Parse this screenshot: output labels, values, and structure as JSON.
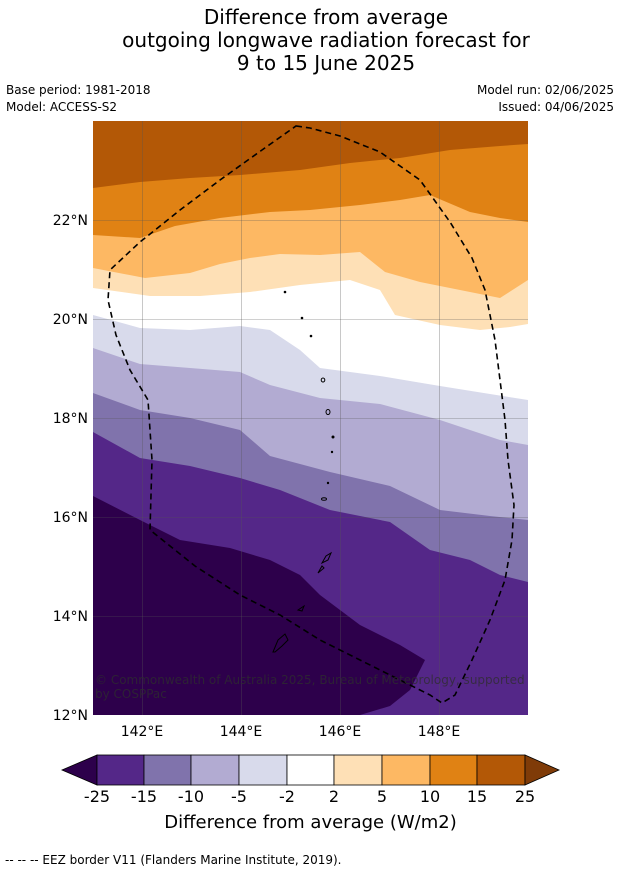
{
  "title": {
    "line1": "Difference from average",
    "line2": "outgoing longwave radiation forecast for",
    "line3": "9 to 15 June 2025"
  },
  "meta": {
    "base_period": "Base period: 1981-2018",
    "model": "Model: ACCESS-S2",
    "model_run": "Model run: 02/06/2025",
    "issued": "Issued: 04/06/2025"
  },
  "map": {
    "lat_labels": [
      "22°N",
      "20°N",
      "18°N",
      "16°N",
      "14°N",
      "12°N"
    ],
    "lon_labels": [
      "142°E",
      "144°E",
      "146°E",
      "148°E"
    ],
    "lat_range": [
      12,
      24
    ],
    "lon_range": [
      141,
      149.8
    ],
    "copyright": "© Commonwealth of Australia 2025, Bureau of Meteorology, supported by COSPPac"
  },
  "colorbar": {
    "ticks": [
      "-25",
      "-15",
      "-10",
      "-5",
      "-2",
      "2",
      "5",
      "10",
      "15",
      "25"
    ],
    "colors": [
      "#2d004b",
      "#542788",
      "#8073ac",
      "#b2abd2",
      "#d8daeb",
      "#ffffff",
      "#fee0b6",
      "#fdb863",
      "#e08214",
      "#b35806",
      "#7f3b08"
    ],
    "title": "Difference from average (W/m2)"
  },
  "footer": {
    "legend_note": "--  --  -- EEZ border V11 (Flanders Marine Institute, 2019)."
  }
}
